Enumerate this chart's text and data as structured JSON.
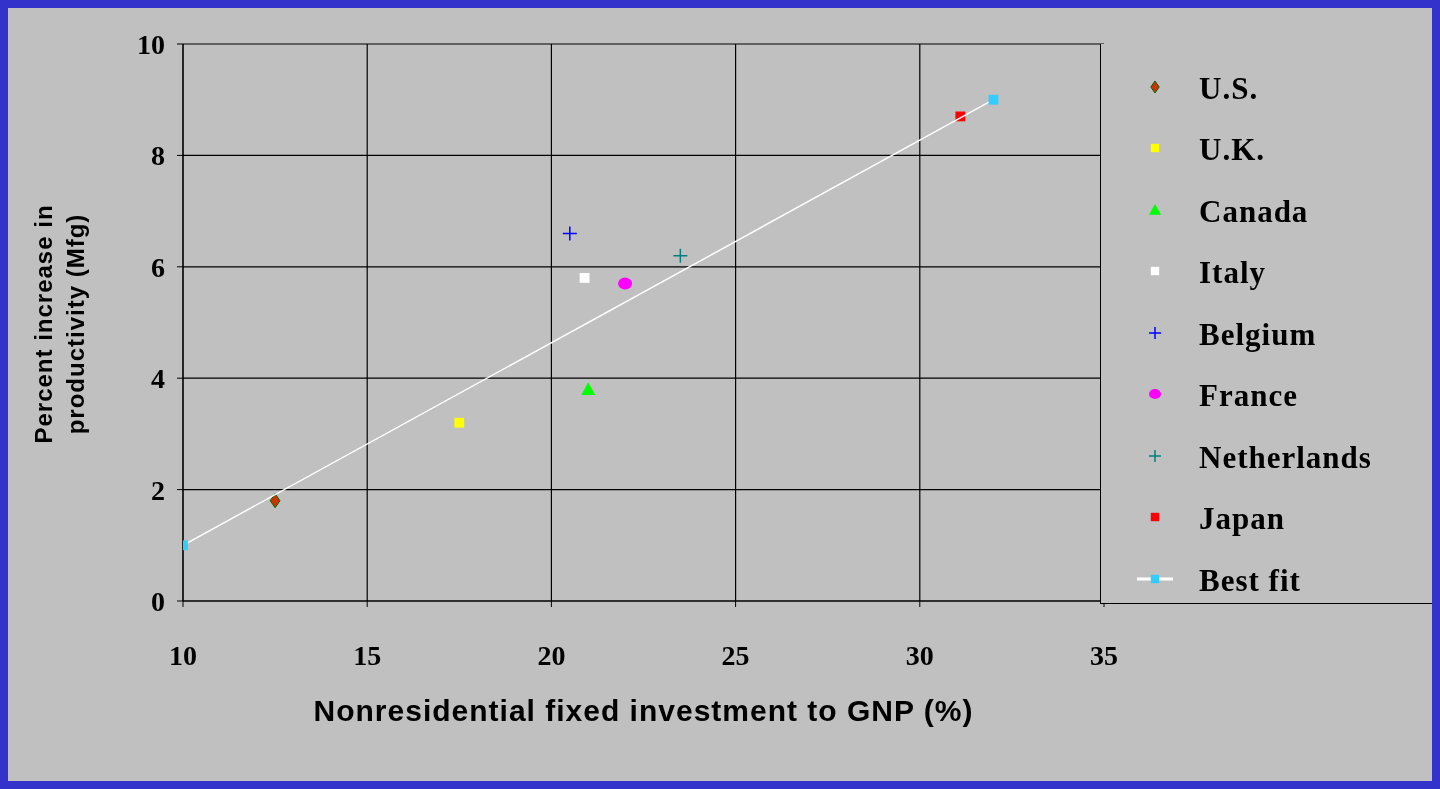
{
  "chart_data": {
    "type": "scatter",
    "xlabel": "Nonresidential fixed investment to GNP (%)",
    "ylabel": "Percent increase in productivity (Mfg)",
    "xlim": [
      10,
      35
    ],
    "xticks": [
      10,
      15,
      20,
      25,
      30,
      35
    ],
    "ylim": [
      0,
      10
    ],
    "yticks": [
      0,
      2,
      4,
      6,
      8,
      10
    ],
    "grid": true,
    "legend": "right",
    "series": [
      {
        "name": "U.S.",
        "color": "#cc3300",
        "marker": "diamond",
        "x": [
          12.5
        ],
        "values": [
          1.8
        ]
      },
      {
        "name": "U.K.",
        "color": "#ffff00",
        "marker": "square",
        "x": [
          17.5
        ],
        "values": [
          3.2
        ]
      },
      {
        "name": "Canada",
        "color": "#00ff00",
        "marker": "triangle",
        "x": [
          21.0
        ],
        "values": [
          3.8
        ]
      },
      {
        "name": "Italy",
        "color": "#ffffff",
        "marker": "square",
        "x": [
          20.9
        ],
        "values": [
          5.8
        ]
      },
      {
        "name": "Belgium",
        "color": "#0000ff",
        "marker": "cross",
        "x": [
          20.5
        ],
        "values": [
          6.6
        ]
      },
      {
        "name": "France",
        "color": "#ff00ff",
        "marker": "circle",
        "x": [
          22.0
        ],
        "values": [
          5.7
        ]
      },
      {
        "name": "Netherlands",
        "color": "#008080",
        "marker": "cross",
        "x": [
          23.5
        ],
        "values": [
          6.2
        ]
      },
      {
        "name": "Japan",
        "color": "#ff0000",
        "marker": "square",
        "x": [
          31.1
        ],
        "values": [
          8.7
        ]
      },
      {
        "name": "Best fit",
        "type": "line",
        "color": "#ffffff",
        "colors": [
          "#33ccff",
          "#33ccff"
        ],
        "marker": "square",
        "x": [
          10,
          32
        ],
        "values": [
          1,
          9
        ]
      }
    ]
  }
}
